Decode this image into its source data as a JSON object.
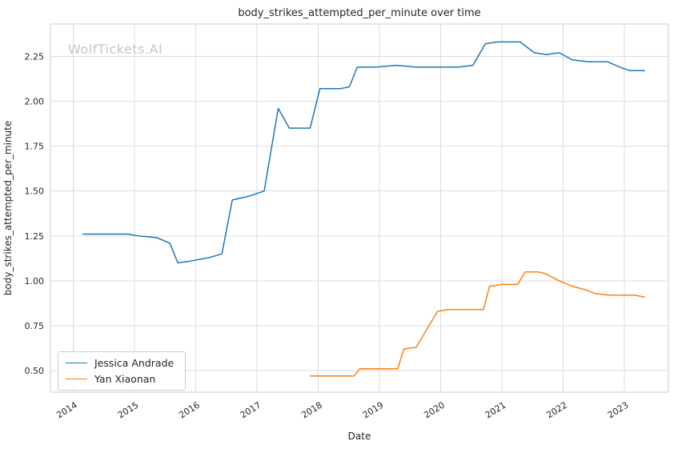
{
  "watermark": "WolfTickets.AI",
  "chart_data": {
    "type": "line",
    "title": "body_strikes_attempted_per_minute over time",
    "xlabel": "Date",
    "ylabel": "body_strikes_attempted_per_minute",
    "xlim": [
      2013.63,
      2023.72
    ],
    "ylim": [
      0.38,
      2.43
    ],
    "x_ticks": [
      2014,
      2015,
      2016,
      2017,
      2018,
      2019,
      2020,
      2021,
      2022,
      2023
    ],
    "y_ticks": [
      0.5,
      0.75,
      1.0,
      1.25,
      1.5,
      1.75,
      2.0,
      2.25
    ],
    "grid": true,
    "legend_position": "lower left",
    "series": [
      {
        "name": "Jessica Andrade",
        "color": "#1f77b4",
        "points": [
          [
            2014.16,
            1.26
          ],
          [
            2014.57,
            1.26
          ],
          [
            2014.9,
            1.26
          ],
          [
            2015.06,
            1.25
          ],
          [
            2015.37,
            1.24
          ],
          [
            2015.58,
            1.21
          ],
          [
            2015.71,
            1.1
          ],
          [
            2015.92,
            1.11
          ],
          [
            2016.23,
            1.13
          ],
          [
            2016.43,
            1.15
          ],
          [
            2016.6,
            1.45
          ],
          [
            2016.86,
            1.47
          ],
          [
            2017.12,
            1.5
          ],
          [
            2017.35,
            1.96
          ],
          [
            2017.53,
            1.85
          ],
          [
            2017.87,
            1.85
          ],
          [
            2018.03,
            2.07
          ],
          [
            2018.36,
            2.07
          ],
          [
            2018.51,
            2.08
          ],
          [
            2018.64,
            2.19
          ],
          [
            2018.94,
            2.19
          ],
          [
            2019.28,
            2.2
          ],
          [
            2019.6,
            2.19
          ],
          [
            2019.95,
            2.19
          ],
          [
            2020.29,
            2.19
          ],
          [
            2020.53,
            2.2
          ],
          [
            2020.73,
            2.32
          ],
          [
            2020.93,
            2.33
          ],
          [
            2021.3,
            2.33
          ],
          [
            2021.53,
            2.27
          ],
          [
            2021.73,
            2.26
          ],
          [
            2021.94,
            2.27
          ],
          [
            2022.15,
            2.23
          ],
          [
            2022.41,
            2.22
          ],
          [
            2022.72,
            2.22
          ],
          [
            2022.93,
            2.19
          ],
          [
            2023.09,
            2.17
          ],
          [
            2023.33,
            2.17
          ]
        ]
      },
      {
        "name": "Yan Xiaonan",
        "color": "#ff7f0e",
        "points": [
          [
            2017.87,
            0.47
          ],
          [
            2018.19,
            0.47
          ],
          [
            2018.42,
            0.47
          ],
          [
            2018.59,
            0.47
          ],
          [
            2018.68,
            0.51
          ],
          [
            2018.94,
            0.51
          ],
          [
            2019.3,
            0.51
          ],
          [
            2019.4,
            0.62
          ],
          [
            2019.6,
            0.63
          ],
          [
            2019.95,
            0.83
          ],
          [
            2020.12,
            0.84
          ],
          [
            2020.44,
            0.84
          ],
          [
            2020.7,
            0.84
          ],
          [
            2020.8,
            0.97
          ],
          [
            2021.0,
            0.98
          ],
          [
            2021.26,
            0.98
          ],
          [
            2021.38,
            1.05
          ],
          [
            2021.59,
            1.05
          ],
          [
            2021.71,
            1.04
          ],
          [
            2021.94,
            1.0
          ],
          [
            2022.15,
            0.97
          ],
          [
            2022.37,
            0.95
          ],
          [
            2022.52,
            0.93
          ],
          [
            2022.75,
            0.92
          ],
          [
            2022.99,
            0.92
          ],
          [
            2023.16,
            0.92
          ],
          [
            2023.33,
            0.91
          ]
        ]
      }
    ]
  }
}
